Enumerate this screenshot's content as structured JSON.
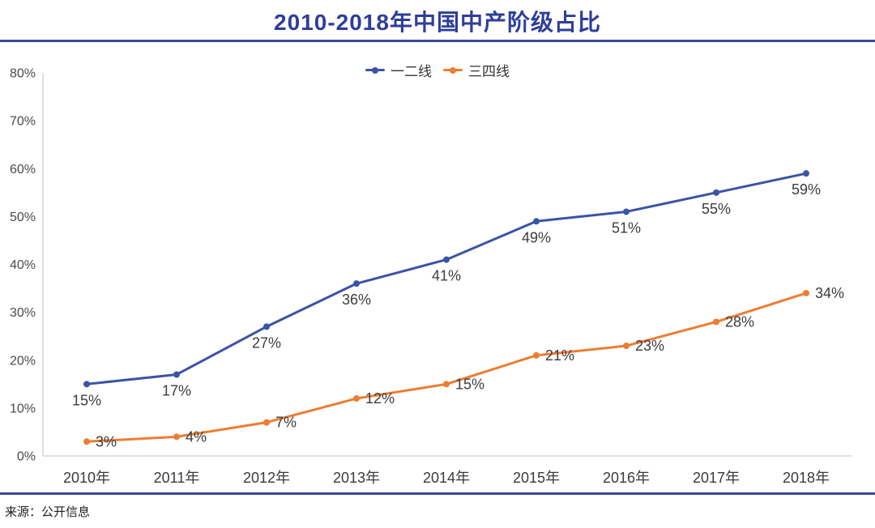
{
  "title": "2010-2018年中国中产阶级占比",
  "source_note": "来源：公开信息",
  "accent_colors": {
    "title_navy": "#2E3E99",
    "rule_navy": "#3A4A9B",
    "axis_gray": "#D6D6D6",
    "tick_label_gray": "#4A4A4A",
    "data_label_gray": "#3C3C3C"
  },
  "chart_data": {
    "type": "line",
    "title": "2010-2018年中国中产阶级占比",
    "categories": [
      "2010年",
      "2011年",
      "2012年",
      "2013年",
      "2014年",
      "2015年",
      "2016年",
      "2017年",
      "2018年"
    ],
    "series": [
      {
        "name": "一二线",
        "color": "#3B53A5",
        "values": [
          15,
          17,
          27,
          36,
          41,
          49,
          51,
          55,
          59
        ],
        "data_label_format": "percent",
        "label_position": "below"
      },
      {
        "name": "三四线",
        "color": "#ED7D31",
        "values": [
          3,
          4,
          7,
          12,
          15,
          21,
          23,
          28,
          34
        ],
        "data_label_format": "percent",
        "label_position": "right"
      }
    ],
    "xlabel": "",
    "ylabel": "",
    "ylim": [
      0,
      80
    ],
    "ytick_step": 10,
    "ytick_suffix": "%",
    "grid": false,
    "data_labels": true,
    "legend_position": "top-center",
    "marker": "circle"
  }
}
